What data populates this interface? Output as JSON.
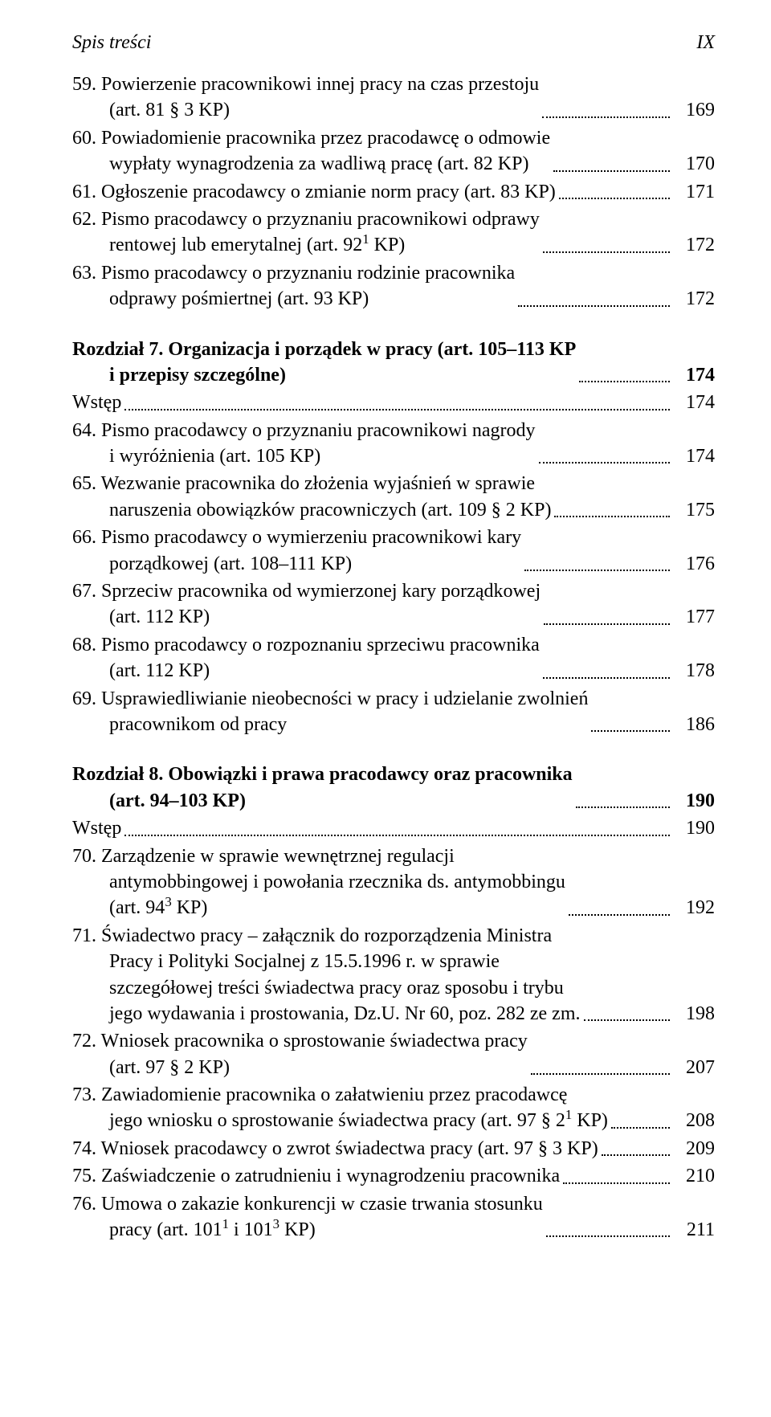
{
  "header": {
    "left": "Spis treści",
    "right": "IX"
  },
  "entries": [
    {
      "type": "item",
      "lines": [
        "59. Powierzenie pracownikowi innej pracy na czas przestoju",
        "(art. 81 § 3 KP)"
      ],
      "page": "169"
    },
    {
      "type": "item",
      "lines": [
        "60. Powiadomienie pracownika przez pracodawcę o odmowie",
        "wypłaty wynagrodzenia za wadliwą pracę (art. 82 KP)"
      ],
      "page": "170"
    },
    {
      "type": "item",
      "lines": [
        "61. Ogłoszenie pracodawcy o zmianie norm pracy (art. 83 KP)"
      ],
      "page": "171"
    },
    {
      "type": "item",
      "lines": [
        "62. Pismo pracodawcy o przyznaniu pracownikowi odprawy",
        "rentowej lub emerytalnej (art. 92<sup>1</sup> KP)"
      ],
      "page": "172"
    },
    {
      "type": "item",
      "lines": [
        "63. Pismo pracodawcy o przyznaniu rodzinie pracownika",
        "odprawy pośmiertnej (art. 93 KP)"
      ],
      "page": "172"
    },
    {
      "type": "gap"
    },
    {
      "type": "chapter",
      "lines": [
        "Rozdział 7. Organizacja i porządek w pracy (art. 105–113 KP",
        "i przepisy szczególne)"
      ],
      "page": "174"
    },
    {
      "type": "item",
      "lines": [
        "Wstęp"
      ],
      "page": "174"
    },
    {
      "type": "item",
      "lines": [
        "64. Pismo pracodawcy o przyznaniu pracownikowi nagrody",
        "i wyróżnienia (art. 105 KP)"
      ],
      "page": "174"
    },
    {
      "type": "item",
      "lines": [
        "65. Wezwanie pracownika do złożenia wyjaśnień w sprawie",
        "naruszenia obowiązków pracowniczych (art. 109 § 2 KP)"
      ],
      "page": "175"
    },
    {
      "type": "item",
      "lines": [
        "66. Pismo pracodawcy o wymierzeniu pracownikowi kary",
        "porządkowej (art. 108–111 KP)"
      ],
      "page": "176"
    },
    {
      "type": "item",
      "lines": [
        "67. Sprzeciw pracownika od wymierzonej kary porządkowej",
        "(art. 112 KP)"
      ],
      "page": "177"
    },
    {
      "type": "item",
      "lines": [
        "68. Pismo pracodawcy o rozpoznaniu sprzeciwu pracownika",
        "(art. 112 KP)"
      ],
      "page": "178"
    },
    {
      "type": "item",
      "lines": [
        "69. Usprawiedliwianie nieobecności w pracy i udzielanie zwolnień",
        "pracownikom od pracy"
      ],
      "page": "186"
    },
    {
      "type": "gap"
    },
    {
      "type": "chapter",
      "lines": [
        "Rozdział 8. Obowiązki i prawa pracodawcy oraz pracownika",
        "(art. 94–103 KP)"
      ],
      "page": "190"
    },
    {
      "type": "item",
      "lines": [
        "Wstęp"
      ],
      "page": "190"
    },
    {
      "type": "item",
      "lines": [
        "70. Zarządzenie w sprawie wewnętrznej regulacji",
        "antymobbingowej i powołania rzecznika ds. antymobbingu",
        "(art. 94<sup>3</sup> KP)"
      ],
      "page": "192"
    },
    {
      "type": "item",
      "lines": [
        "71. Świadectwo pracy – załącznik do rozporządzenia Ministra",
        "Pracy i Polityki Socjalnej z 15.5.1996 r. w sprawie",
        "szczegółowej treści świadectwa pracy oraz sposobu i trybu",
        "jego wydawania i prostowania, Dz.U. Nr 60, poz. 282 ze zm. "
      ],
      "page": "198"
    },
    {
      "type": "item",
      "lines": [
        "72. Wniosek pracownika o sprostowanie świadectwa pracy",
        "(art. 97 § 2 KP)"
      ],
      "page": "207"
    },
    {
      "type": "item",
      "lines": [
        "73. Zawiadomienie pracownika o załatwieniu przez pracodawcę",
        "jego wniosku o sprostowanie świadectwa pracy (art. 97 § 2<sup>1</sup> KP)"
      ],
      "page": "208"
    },
    {
      "type": "item",
      "lines": [
        "74. Wniosek pracodawcy o zwrot świadectwa pracy (art. 97 § 3 KP)"
      ],
      "page": "209"
    },
    {
      "type": "item",
      "lines": [
        "75. Zaświadczenie o zatrudnieniu i wynagrodzeniu pracownika"
      ],
      "page": "210"
    },
    {
      "type": "item",
      "lines": [
        "76. Umowa o zakazie konkurencji w czasie trwania stosunku",
        "pracy (art. 101<sup>1</sup> i 101<sup>3</sup> KP)"
      ],
      "page": "211"
    }
  ]
}
